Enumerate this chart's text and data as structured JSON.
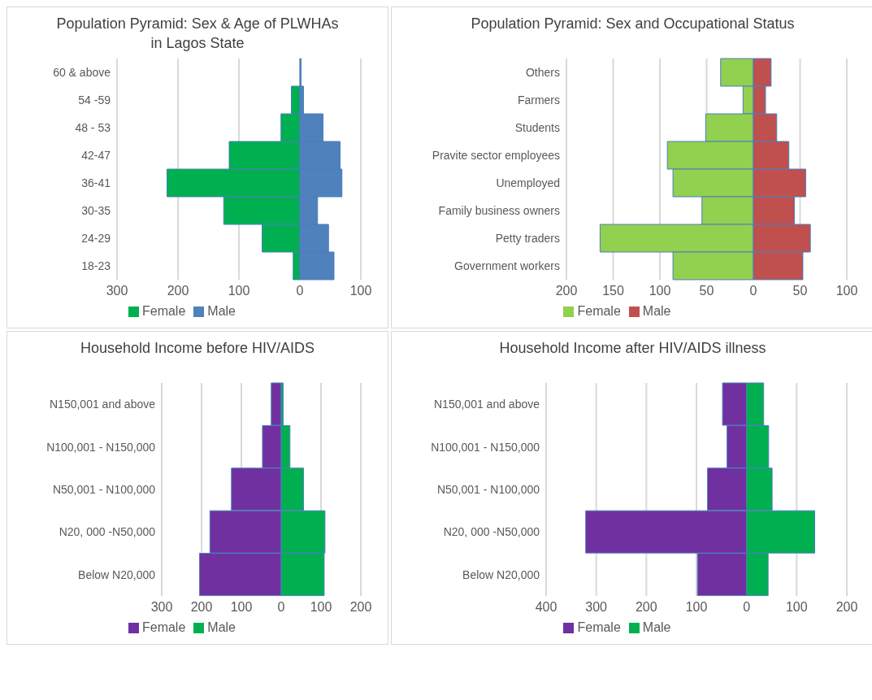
{
  "chart_data": [
    {
      "type": "bar",
      "orientation": "horizontal",
      "stacked": true,
      "title": "Population Pyramid: Sex & Age of PLWHAs in Lagos State",
      "categories": [
        "60 & above",
        "54 -59",
        "48 - 53",
        "42-47",
        "36-41",
        "30-35",
        "24-29",
        "18-23"
      ],
      "series": [
        {
          "name": "Female",
          "color": "#00b050",
          "values": [
            null,
            -14,
            -31,
            -116,
            -218,
            -125,
            -62,
            -11
          ]
        },
        {
          "name": "Male",
          "color": "#4f81bd",
          "values": [
            2,
            6,
            38,
            66,
            69,
            29,
            47,
            56
          ]
        }
      ],
      "xlim": [
        -300,
        100
      ],
      "xticks": [
        {
          "value": -300,
          "label": "300"
        },
        {
          "value": -200,
          "label": "200"
        },
        {
          "value": -100,
          "label": "100"
        },
        0,
        100
      ],
      "grid": "x",
      "legend": "bottom"
    },
    {
      "type": "bar",
      "orientation": "horizontal",
      "stacked": true,
      "title": "Population Pyramid: Sex and Occupational Status",
      "categories": [
        "Others",
        "Farmers",
        "Students",
        "Pravite sector employees",
        "Unemployed",
        "Family business owners",
        "Petty traders",
        "Government workers"
      ],
      "series": [
        {
          "name": "Female",
          "color": "#92d050",
          "values": [
            -35,
            -11,
            -51,
            -92,
            -86,
            -55,
            -164,
            -86
          ]
        },
        {
          "name": "Male",
          "color": "#c0504d",
          "values": [
            19,
            13,
            25,
            38,
            56,
            44,
            61,
            53
          ]
        }
      ],
      "xlim": [
        -200,
        100
      ],
      "xticks": [
        {
          "value": -200,
          "label": "200"
        },
        {
          "value": -150,
          "label": "150"
        },
        {
          "value": -100,
          "label": "100"
        },
        {
          "value": -50,
          "label": "50"
        },
        0,
        50,
        100
      ],
      "grid": "x",
      "legend": "bottom"
    },
    {
      "type": "bar",
      "orientation": "horizontal",
      "stacked": true,
      "title": "Household Income before HIV/AIDS",
      "categories": [
        "N150,001 and above",
        "N100,001 - N150,000",
        "N50,001  - N100,000",
        "N20, 000 -N50,000",
        "Below N20,000"
      ],
      "series": [
        {
          "name": "Female",
          "color": "#7030a0",
          "values": [
            -25,
            -47,
            -125,
            -179,
            -205
          ]
        },
        {
          "name": "Male",
          "color": "#00b050",
          "values": [
            5,
            22,
            56,
            110,
            108
          ]
        }
      ],
      "xlim": [
        -300,
        200
      ],
      "xticks": [
        {
          "value": -300,
          "label": "300"
        },
        {
          "value": -200,
          "label": "200"
        },
        {
          "value": -100,
          "label": "100"
        },
        0,
        100,
        200
      ],
      "grid": "x",
      "legend": "bottom"
    },
    {
      "type": "bar",
      "orientation": "horizontal",
      "stacked": true,
      "title": "Household Income after HIV/AIDS illness",
      "categories": [
        "N150,001 and above",
        "N100,001 - N150,000",
        "N50,001  - N100,000",
        "N20, 000 -N50,000",
        "Below N20,000"
      ],
      "series": [
        {
          "name": "Female",
          "color": "#7030a0",
          "values": [
            -48,
            -39,
            -78,
            -321,
            -98
          ]
        },
        {
          "name": "Male",
          "color": "#00b050",
          "values": [
            34,
            44,
            51,
            136,
            43
          ]
        }
      ],
      "xlim": [
        -400,
        200
      ],
      "xticks": [
        {
          "value": -400,
          "label": "400"
        },
        {
          "value": -300,
          "label": "300"
        },
        {
          "value": -200,
          "label": "200"
        },
        {
          "value": -100,
          "label": "100"
        },
        0,
        100,
        200
      ],
      "grid": "x",
      "legend": "bottom"
    }
  ]
}
